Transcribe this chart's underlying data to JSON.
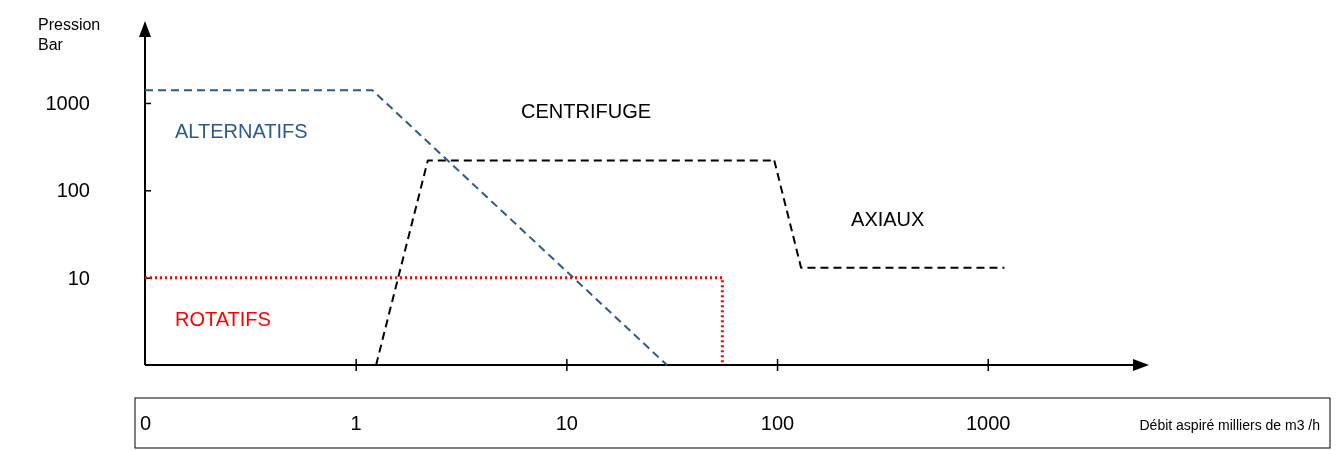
{
  "chart_data": {
    "type": "line",
    "xlabel": "Débit aspiré milliers de m3 /h",
    "ylabel": "Pression\nBar",
    "log": "xy",
    "xlim": [
      0.1,
      5000
    ],
    "ylim": [
      1,
      6000
    ],
    "xticks": [
      {
        "value": 0.1,
        "label": "0"
      },
      1,
      10,
      100,
      1000
    ],
    "yticks": [
      10,
      100,
      1000
    ],
    "grid": false,
    "marker": "none",
    "series": [
      {
        "name": "ALTERNATIFS",
        "color": "#2e5a8a",
        "line_style": "dashed",
        "x": [
          0.1,
          1.2,
          30
        ],
        "values": [
          1400,
          1400,
          1
        ]
      },
      {
        "name": "CENTRIFUGE",
        "color": "#000000",
        "line_style": "dashed",
        "x": [
          1.25,
          2.2,
          97
        ],
        "values": [
          1,
          220,
          220
        ]
      },
      {
        "name": "AXIAUX",
        "color": "#000000",
        "line_style": "dashed",
        "x": [
          97,
          130,
          1200
        ],
        "values": [
          220,
          13,
          13
        ]
      },
      {
        "name": "ROTATIFS",
        "color": "#ff0000",
        "line_style": "dotted",
        "x": [
          0.1,
          55,
          55
        ],
        "values": [
          10,
          10,
          1
        ]
      }
    ]
  }
}
